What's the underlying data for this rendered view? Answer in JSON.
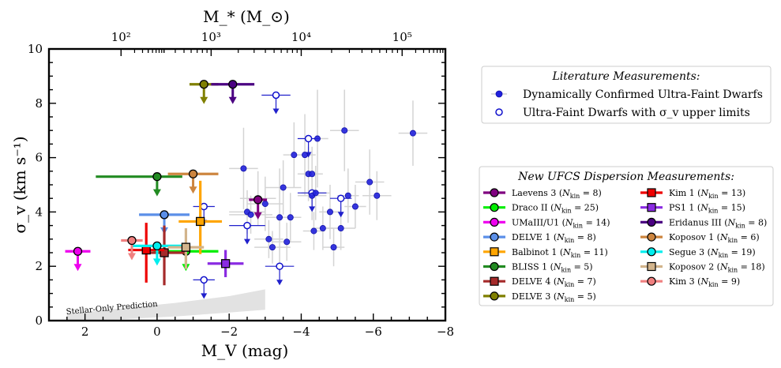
{
  "chart_data": {
    "type": "scatter",
    "title": "",
    "xlabel": "M_V (mag)",
    "ylabel": "σ_v (km s⁻¹)",
    "top_xlabel": "M_* (M_⊙)",
    "xlim": [
      3,
      -8
    ],
    "ylim": [
      0,
      10
    ],
    "x_ticks": [
      2,
      0,
      -2,
      -4,
      -6,
      -8
    ],
    "x_tick_labels": [
      "2",
      "0",
      "−2",
      "−4",
      "−6",
      "−8"
    ],
    "y_ticks": [
      0,
      2,
      4,
      6,
      8,
      10
    ],
    "y_tick_labels": [
      "0",
      "2",
      "4",
      "6",
      "8",
      "10"
    ],
    "top_ticks_mv": [
      1.0,
      -1.5,
      -4.0,
      -6.8
    ],
    "top_tick_labels": [
      "10²",
      "10³",
      "10⁴",
      "10⁵"
    ],
    "stellar_only_label": "Stellar-Only Prediction",
    "stellar_only_band": {
      "upper": [
        [
          2.5,
          0.25
        ],
        [
          1.0,
          0.45
        ],
        [
          -0.5,
          0.65
        ],
        [
          -2.0,
          0.9
        ],
        [
          -3.0,
          1.15
        ]
      ],
      "lower": [
        [
          -3.0,
          0.4
        ],
        [
          -2.0,
          0.3
        ],
        [
          -0.5,
          0.15
        ],
        [
          1.0,
          0.05
        ],
        [
          2.5,
          0.02
        ]
      ]
    },
    "literature_legend_title": "Literature Measurements:",
    "literature_legend": [
      {
        "label": "Dynamically Confirmed Ultra-Faint Dwarfs",
        "style": "filled"
      },
      {
        "label": "Ultra-Faint Dwarfs with σ_v upper limits",
        "style": "open"
      }
    ],
    "literature_confirmed": [
      {
        "x": -2.4,
        "y": 5.6,
        "xerr": 0.4,
        "yerr": 1.5
      },
      {
        "x": -2.5,
        "y": 4.0,
        "xerr": 0.5,
        "yerr": 0.8
      },
      {
        "x": -2.6,
        "y": 3.9,
        "xerr": 0.6,
        "yerr": 0.7
      },
      {
        "x": -2.8,
        "y": 4.5,
        "xerr": 0.5,
        "yerr": 1.0
      },
      {
        "x": -3.0,
        "y": 4.3,
        "xerr": 0.5,
        "yerr": 1.0
      },
      {
        "x": -3.1,
        "y": 3.0,
        "xerr": 0.4,
        "yerr": 0.7
      },
      {
        "x": -3.2,
        "y": 2.7,
        "xerr": 0.5,
        "yerr": 0.6
      },
      {
        "x": -3.4,
        "y": 3.8,
        "xerr": 0.4,
        "yerr": 1.8
      },
      {
        "x": -3.5,
        "y": 4.9,
        "xerr": 0.5,
        "yerr": 1.0
      },
      {
        "x": -3.6,
        "y": 2.9,
        "xerr": 0.4,
        "yerr": 0.7
      },
      {
        "x": -3.7,
        "y": 3.8,
        "xerr": 0.3,
        "yerr": 0.9
      },
      {
        "x": -3.8,
        "y": 6.1,
        "xerr": 0.3,
        "yerr": 1.2
      },
      {
        "x": -4.1,
        "y": 6.1,
        "xerr": 0.3,
        "yerr": 1.5
      },
      {
        "x": -4.2,
        "y": 5.4,
        "xerr": 0.3,
        "yerr": 1.0
      },
      {
        "x": -4.3,
        "y": 5.4,
        "xerr": 0.3,
        "yerr": 1.0
      },
      {
        "x": -4.3,
        "y": 4.6,
        "xerr": 0.4,
        "yerr": 0.9
      },
      {
        "x": -4.35,
        "y": 3.3,
        "xerr": 0.3,
        "yerr": 0.7
      },
      {
        "x": -4.4,
        "y": 4.7,
        "xerr": 0.4,
        "yerr": 1.0
      },
      {
        "x": -4.45,
        "y": 6.7,
        "xerr": 0.3,
        "yerr": 1.8
      },
      {
        "x": -4.6,
        "y": 3.4,
        "xerr": 0.3,
        "yerr": 0.8
      },
      {
        "x": -4.8,
        "y": 4.0,
        "xerr": 0.3,
        "yerr": 1.0
      },
      {
        "x": -4.9,
        "y": 2.7,
        "xerr": 0.3,
        "yerr": 0.7
      },
      {
        "x": -5.1,
        "y": 3.4,
        "xerr": 0.4,
        "yerr": 0.8
      },
      {
        "x": -5.2,
        "y": 7.0,
        "xerr": 0.4,
        "yerr": 1.5
      },
      {
        "x": -5.3,
        "y": 4.6,
        "xerr": 0.3,
        "yerr": 1.0
      },
      {
        "x": -5.5,
        "y": 4.2,
        "xerr": 0.3,
        "yerr": 0.8
      },
      {
        "x": -5.9,
        "y": 5.1,
        "xerr": 0.4,
        "yerr": 1.2
      },
      {
        "x": -6.1,
        "y": 4.6,
        "xerr": 0.4,
        "yerr": 0.9
      },
      {
        "x": -7.1,
        "y": 6.9,
        "xerr": 0.4,
        "yerr": 1.2
      }
    ],
    "literature_upper_limits": [
      {
        "x": -3.3,
        "y": 8.3,
        "xerr": 0.4
      },
      {
        "x": -4.2,
        "y": 6.7,
        "xerr": 0.3
      },
      {
        "x": -5.1,
        "y": 4.5,
        "xerr": 0.3
      },
      {
        "x": -4.3,
        "y": 4.7,
        "xerr": 0.4
      },
      {
        "x": -2.5,
        "y": 3.5,
        "xerr": 0.5
      },
      {
        "x": -3.4,
        "y": 2.0,
        "xerr": 0.4
      },
      {
        "x": -1.3,
        "y": 4.2,
        "xerr": 0.3
      },
      {
        "x": -1.3,
        "y": 1.5,
        "xerr": 0.3
      }
    ],
    "ufcs_legend_title": "New UFCS Dispersion Measurements:",
    "series": [
      {
        "name": "Laevens 3",
        "nkin": "8",
        "color": "#800080",
        "marker": "circle",
        "x": -2.8,
        "y": 4.45,
        "xerr": 0.25,
        "upper_limit": true
      },
      {
        "name": "Draco II",
        "nkin": "25",
        "color": "#00ee00",
        "marker": "circle",
        "x": -0.8,
        "y": 2.55,
        "xerr": 0.9,
        "upper_limit": true
      },
      {
        "name": "UMaIII/U1",
        "nkin": "14",
        "color": "#ee00ee",
        "marker": "circle",
        "x": 2.2,
        "y": 2.55,
        "xerr": 0.35,
        "upper_limit": true
      },
      {
        "name": "DELVE 1",
        "nkin": "8",
        "color": "#5b8fe8",
        "marker": "circle",
        "x": -0.2,
        "y": 3.9,
        "xerr": 0.7,
        "upper_limit": true
      },
      {
        "name": "Balbinot 1",
        "nkin": "11",
        "color": "#ffa500",
        "marker": "square",
        "x": -1.2,
        "y": 3.65,
        "xerr": 0.6,
        "yerr": [
          1.2,
          1.5
        ],
        "upper_limit": false
      },
      {
        "name": "BLISS 1",
        "nkin": "5",
        "color": "#228b22",
        "marker": "circle",
        "x": 0.0,
        "y": 5.3,
        "xerr": [
          1.7,
          0.7
        ],
        "upper_limit": true
      },
      {
        "name": "DELVE 4",
        "nkin": "7",
        "color": "#a52a2a",
        "marker": "square",
        "x": -0.2,
        "y": 2.5,
        "xerr": 0.6,
        "yerr": [
          1.2,
          1.0
        ],
        "upper_limit": false
      },
      {
        "name": "DELVE 3",
        "nkin": "5",
        "color": "#808000",
        "marker": "circle",
        "x": -1.3,
        "y": 8.7,
        "xerr": 0.4,
        "upper_limit": true
      },
      {
        "name": "Kim 1",
        "nkin": "13",
        "color": "#ee0000",
        "marker": "square",
        "x": 0.3,
        "y": 2.6,
        "xerr": 0.5,
        "yerr": [
          1.2,
          1.0
        ],
        "upper_limit": false
      },
      {
        "name": "PS1 1",
        "nkin": "15",
        "color": "#8a2be2",
        "marker": "square",
        "x": -1.9,
        "y": 2.1,
        "xerr": 0.5,
        "yerr": [
          0.5,
          0.5
        ],
        "upper_limit": false
      },
      {
        "name": "Eridanus III",
        "nkin": "8",
        "color": "#4b0082",
        "marker": "circle",
        "x": -2.1,
        "y": 8.7,
        "xerr": 0.6,
        "upper_limit": true
      },
      {
        "name": "Koposov 1",
        "nkin": "6",
        "color": "#cd853f",
        "marker": "circle",
        "x": -1.0,
        "y": 5.4,
        "xerr": 0.7,
        "upper_limit": true
      },
      {
        "name": "Segue 3",
        "nkin": "19",
        "color": "#00eeee",
        "marker": "circle",
        "x": 0.0,
        "y": 2.75,
        "xerr": 0.7,
        "upper_limit": true
      },
      {
        "name": "Koposov 2",
        "nkin": "18",
        "color": "#d2b48c",
        "marker": "square",
        "x": -0.8,
        "y": 2.7,
        "xerr": 0.5,
        "yerr": [
          0.8,
          0.7
        ],
        "upper_limit": false
      },
      {
        "name": "Kim 3",
        "nkin": "9",
        "color": "#f08080",
        "marker": "circle",
        "x": 0.7,
        "y": 2.95,
        "xerr": 0.3,
        "upper_limit": true
      }
    ]
  }
}
